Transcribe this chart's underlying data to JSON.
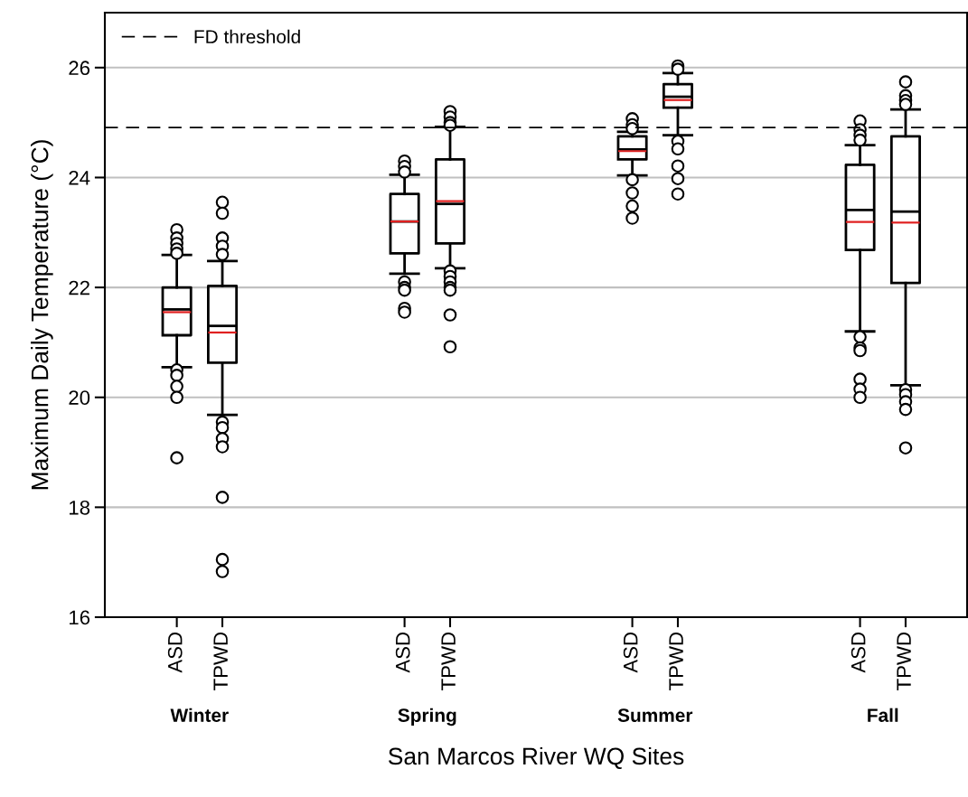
{
  "chart_data": {
    "type": "box",
    "xlabel": "San Marcos River WQ Sites",
    "ylabel": "Maximum Daily Temperature (°C)",
    "categories": [
      "ASD",
      "TPWD",
      "ASD",
      "TPWD",
      "ASD",
      "TPWD",
      "ASD",
      "TPWD"
    ],
    "annotations": [
      "Winter",
      "Spring",
      "Summer",
      "Fall"
    ],
    "ylim": [
      16,
      27
    ],
    "yticks": [
      16,
      18,
      20,
      22,
      24,
      26
    ],
    "grid": "y",
    "legend": "top left",
    "ref_lines": [
      {
        "axis": "y",
        "value": 24.91,
        "label": "FD threshold",
        "color": "#000000",
        "line_style": "dashed"
      }
    ],
    "boxes": [
      {
        "low": 20.55,
        "q1": 21.13,
        "median": 21.6,
        "q3": 22.0,
        "high": 22.59,
        "mean": 21.55,
        "outliers": [
          23.05,
          22.9,
          22.8,
          22.7,
          22.62,
          20.5,
          20.4,
          20.2,
          20.0,
          18.9
        ]
      },
      {
        "low": 19.68,
        "q1": 20.63,
        "median": 21.3,
        "q3": 22.03,
        "high": 22.48,
        "mean": 21.18,
        "outliers": [
          23.55,
          23.35,
          22.9,
          22.75,
          22.6,
          19.55,
          19.45,
          19.25,
          19.1,
          18.18,
          17.05,
          16.83
        ]
      },
      {
        "low": 22.25,
        "q1": 22.62,
        "median": 23.2,
        "q3": 23.7,
        "high": 24.05,
        "mean": 23.2,
        "outliers": [
          24.3,
          24.2,
          24.1,
          22.1,
          22.0,
          21.95,
          21.62,
          21.55
        ]
      },
      {
        "low": 22.35,
        "q1": 22.8,
        "median": 23.52,
        "q3": 24.33,
        "high": 24.92,
        "mean": 23.57,
        "outliers": [
          25.2,
          25.1,
          25.0,
          24.95,
          22.3,
          22.2,
          22.1,
          22.0,
          21.95,
          21.5,
          20.92
        ]
      },
      {
        "low": 24.04,
        "q1": 24.33,
        "median": 24.51,
        "q3": 24.75,
        "high": 24.83,
        "mean": 24.48,
        "outliers": [
          25.07,
          24.96,
          24.89,
          23.96,
          23.72,
          23.48,
          23.26
        ]
      },
      {
        "low": 24.77,
        "q1": 25.27,
        "median": 25.47,
        "q3": 25.7,
        "high": 25.9,
        "mean": 25.41,
        "outliers": [
          26.03,
          25.97,
          24.66,
          24.52,
          24.21,
          23.98,
          23.7
        ]
      },
      {
        "low": 21.2,
        "q1": 22.68,
        "median": 23.41,
        "q3": 24.23,
        "high": 24.59,
        "mean": 23.19,
        "outliers": [
          25.03,
          24.87,
          24.77,
          24.68,
          21.1,
          20.9,
          20.85,
          20.33,
          20.15,
          20.0
        ]
      },
      {
        "low": 20.22,
        "q1": 22.08,
        "median": 23.38,
        "q3": 24.75,
        "high": 25.24,
        "mean": 23.18,
        "outliers": [
          25.74,
          25.49,
          25.4,
          25.33,
          20.14,
          20.05,
          19.92,
          19.78,
          19.08
        ]
      }
    ]
  }
}
